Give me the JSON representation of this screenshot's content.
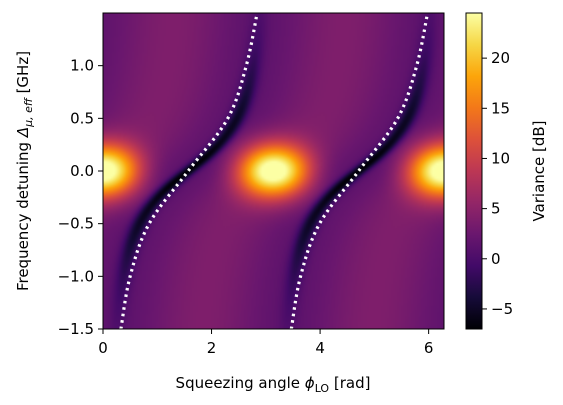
{
  "chart_data": {
    "type": "heatmap",
    "xlabel": "Squeezing angle ϕLO [rad]",
    "xlabel_parts": {
      "prefix": "Squeezing angle ",
      "symbol": "ϕ",
      "subscript": "LO",
      "suffix": " [rad]"
    },
    "ylabel": "Frequency detuning Δμ, eff [GHz]",
    "ylabel_parts": {
      "prefix": "Frequency detuning ",
      "symbol": "Δ",
      "subscript": "μ, eff",
      "suffix": " [GHz]"
    },
    "xlim": [
      0,
      6.283
    ],
    "ylim": [
      -1.5,
      1.5
    ],
    "x_ticks": [
      0,
      2,
      4,
      6
    ],
    "x_tick_labels": [
      "0",
      "2",
      "4",
      "6"
    ],
    "y_ticks": [
      -1.5,
      -1.0,
      -0.5,
      0.0,
      0.5,
      1.0
    ],
    "y_tick_labels": [
      "−1.5",
      "−1.0",
      "−0.5",
      "0.0",
      "0.5",
      "1.0"
    ],
    "colorbar": {
      "label": "Variance [dB]",
      "range": [
        -7,
        24.5
      ],
      "ticks": [
        -5,
        0,
        5,
        10,
        15,
        20
      ],
      "tick_labels": [
        "−5",
        "0",
        "5",
        "10",
        "15",
        "20"
      ],
      "colormap": "inferno"
    },
    "model": {
      "peak_variance_db": 24.5,
      "min_variance_db": -7,
      "background_variance_db": 1.5,
      "peak_centers_x": [
        0,
        3.14,
        6.28
      ],
      "peak_y_width": 0.18,
      "description_curve": "optimal squeezing angle vs detuning"
    },
    "series": [
      {
        "style": "dotted white",
        "points": [
          [
            0.33,
            -1.5
          ],
          [
            0.5,
            -1.0
          ],
          [
            0.85,
            -0.5
          ],
          [
            1.57,
            0.0
          ],
          [
            2.3,
            0.5
          ],
          [
            2.64,
            1.0
          ],
          [
            2.84,
            1.5
          ]
        ]
      },
      {
        "style": "dotted white",
        "points": [
          [
            3.47,
            -1.5
          ],
          [
            3.64,
            -1.0
          ],
          [
            3.99,
            -0.5
          ],
          [
            4.71,
            0.0
          ],
          [
            5.43,
            0.5
          ],
          [
            5.78,
            1.0
          ],
          [
            5.98,
            1.5
          ]
        ]
      }
    ]
  }
}
